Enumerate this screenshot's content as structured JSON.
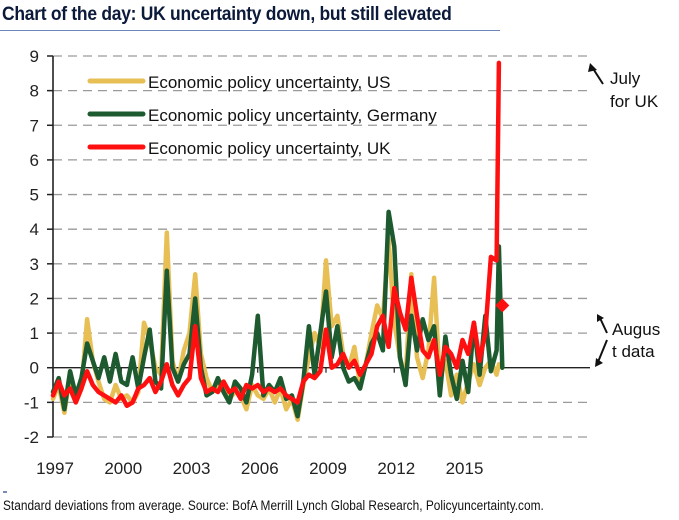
{
  "header": {
    "title": "Chart of the day: UK uncertainty down, but still elevated"
  },
  "footer": {
    "source": "Standard deviations from average. Source: BofA Merrill Lynch Global Research, Policyuncertainty.com."
  },
  "colors": {
    "us": "#e8bf55",
    "germany": "#1e5a30",
    "uk": "#ff1010",
    "grid": "#9a9a9a",
    "axis": "#222222"
  },
  "chart_data": {
    "type": "line",
    "title": "Chart of the day: UK uncertainty down, but still elevated",
    "xlabel": "",
    "ylabel": "Standard deviations from average",
    "xlim": [
      1997,
      2016.9
    ],
    "ylim": [
      -2,
      9
    ],
    "x_ticks": [
      "1997",
      "2000",
      "2003",
      "2006",
      "2009",
      "2012",
      "2015"
    ],
    "y_ticks": [
      "9",
      "8",
      "7",
      "6",
      "5",
      "4",
      "3",
      "2",
      "1",
      "0",
      "-1",
      "-2"
    ],
    "grid": "horizontal dashed",
    "legend_position": "top-left",
    "x": [
      1997.0,
      1997.25,
      1997.5,
      1997.75,
      1998.0,
      1998.25,
      1998.5,
      1998.75,
      1999.0,
      1999.25,
      1999.5,
      1999.75,
      2000.0,
      2000.25,
      2000.5,
      2000.75,
      2001.0,
      2001.25,
      2001.5,
      2001.75,
      2002.0,
      2002.25,
      2002.5,
      2002.75,
      2003.0,
      2003.25,
      2003.5,
      2003.75,
      2004.0,
      2004.25,
      2004.5,
      2004.75,
      2005.0,
      2005.25,
      2005.5,
      2005.75,
      2006.0,
      2006.25,
      2006.5,
      2006.75,
      2007.0,
      2007.25,
      2007.5,
      2007.75,
      2008.0,
      2008.25,
      2008.5,
      2008.75,
      2009.0,
      2009.25,
      2009.5,
      2009.75,
      2010.0,
      2010.25,
      2010.5,
      2010.75,
      2011.0,
      2011.25,
      2011.5,
      2011.75,
      2012.0,
      2012.25,
      2012.5,
      2012.75,
      2013.0,
      2013.25,
      2013.5,
      2013.75,
      2014.0,
      2014.25,
      2014.5,
      2014.75,
      2015.0,
      2015.25,
      2015.5,
      2015.75,
      2016.0,
      2016.25,
      2016.5,
      2016.6,
      2016.75
    ],
    "series": [
      {
        "name": "Economic policy uncertainty, US",
        "color": "#e8bf55",
        "values": [
          -0.9,
          -0.5,
          -1.3,
          -0.2,
          -1.0,
          -0.6,
          1.4,
          0.2,
          -0.4,
          -0.9,
          -1.0,
          -0.5,
          -0.9,
          -0.8,
          -1.0,
          -0.7,
          1.3,
          0.8,
          0.0,
          -0.2,
          3.9,
          0.2,
          -0.4,
          0.5,
          1.0,
          2.7,
          0.4,
          -0.3,
          -0.7,
          -0.5,
          -0.4,
          -0.9,
          -0.7,
          -0.8,
          -1.2,
          -0.5,
          -0.8,
          -0.9,
          -0.6,
          -1.0,
          -0.6,
          -1.2,
          -0.9,
          -1.5,
          -0.5,
          0.3,
          1.0,
          0.6,
          3.1,
          1.2,
          1.5,
          0.4,
          0.0,
          0.6,
          -0.5,
          0.1,
          1.0,
          1.8,
          1.4,
          3.7,
          1.3,
          0.3,
          -0.3,
          2.7,
          0.3,
          -0.3,
          0.5,
          2.6,
          -0.3,
          0.2,
          -0.8,
          -0.2,
          -1.0,
          -0.4,
          0.1,
          -0.5,
          0.0,
          0.2,
          -0.2,
          0.1,
          0.0
        ]
      },
      {
        "name": "Economic policy uncertainty, Germany",
        "color": "#1e5a30",
        "values": [
          -0.7,
          -0.3,
          -1.2,
          -0.1,
          -0.8,
          -0.3,
          0.7,
          0.2,
          -0.3,
          0.3,
          -0.4,
          0.4,
          -0.4,
          -0.5,
          0.3,
          -0.6,
          0.3,
          1.1,
          -0.4,
          -0.6,
          2.8,
          0.0,
          -0.4,
          0.1,
          0.4,
          2.0,
          0.0,
          -0.8,
          -0.7,
          -0.3,
          -0.7,
          -1.0,
          -0.4,
          -0.6,
          -1.0,
          -0.2,
          1.5,
          -0.8,
          -0.5,
          -0.7,
          -0.3,
          -0.9,
          -0.8,
          -1.4,
          -0.4,
          1.2,
          -0.2,
          1.0,
          2.2,
          0.3,
          1.2,
          0.0,
          -0.4,
          -0.3,
          -0.6,
          0.1,
          0.7,
          1.0,
          0.5,
          4.5,
          3.5,
          0.3,
          -0.5,
          1.5,
          0.5,
          1.4,
          0.8,
          1.2,
          -0.8,
          0.9,
          -0.2,
          -0.9,
          0.2,
          -0.7,
          1.3,
          -0.2,
          1.5,
          -0.1,
          0.5,
          3.5,
          0.0
        ]
      },
      {
        "name": "Economic policy uncertainty, UK",
        "color": "#ff1010",
        "values": [
          -0.8,
          -0.4,
          -0.8,
          -0.6,
          -1.0,
          -0.6,
          -0.1,
          -0.5,
          -0.7,
          -0.8,
          -0.9,
          -1.0,
          -0.8,
          -1.1,
          -1.0,
          -0.6,
          -0.5,
          -0.3,
          -0.7,
          -0.4,
          0.1,
          -0.5,
          -0.8,
          -0.5,
          -0.3,
          1.2,
          -0.3,
          -0.7,
          -0.6,
          -0.7,
          -0.4,
          -0.7,
          -0.6,
          -0.9,
          -0.5,
          -0.6,
          -0.5,
          -0.7,
          -0.6,
          -0.7,
          -0.6,
          -0.8,
          -0.9,
          -1.0,
          -0.4,
          -0.2,
          -0.3,
          -0.1,
          1.1,
          0.0,
          0.1,
          0.4,
          0.0,
          0.2,
          -0.2,
          0.1,
          0.4,
          1.2,
          1.5,
          0.6,
          2.3,
          1.6,
          1.1,
          2.6,
          1.5,
          0.5,
          0.3,
          0.8,
          -0.2,
          0.6,
          0.4,
          0.0,
          0.8,
          0.4,
          1.3,
          0.2,
          1.0,
          3.2,
          3.1,
          8.8,
          1.8
        ]
      }
    ],
    "annotations": [
      {
        "text_lines": [
          "July",
          "for  UK"
        ],
        "points_to": {
          "x": 2016.6,
          "y": 8.8
        }
      },
      {
        "text_lines": [
          "Augus",
          "t data"
        ],
        "points_to": [
          {
            "x": 2016.75,
            "y": 1.8
          },
          {
            "x": 2016.75,
            "y": 0.0
          }
        ]
      }
    ]
  }
}
